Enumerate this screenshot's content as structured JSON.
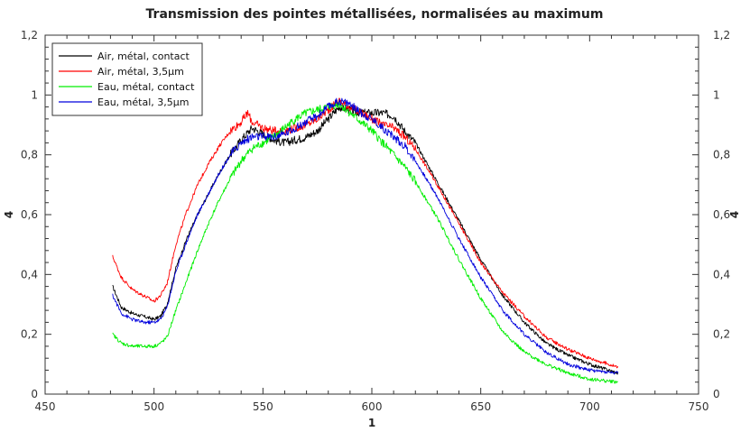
{
  "chart_data": {
    "type": "line",
    "title": "Transmission des pointes métallisées, normalisées au maximum",
    "xlabel": "1",
    "ylabel": "4",
    "ylabel_right": "4",
    "xlim": [
      450,
      750
    ],
    "ylim": [
      0,
      1.2
    ],
    "x_ticks": [
      450,
      500,
      550,
      600,
      650,
      700,
      750
    ],
    "x_tick_labels": [
      "450",
      "500",
      "550",
      "600",
      "650",
      "700",
      "750"
    ],
    "y_ticks": [
      0,
      0.2,
      0.4,
      0.6,
      0.8,
      1,
      1.2
    ],
    "y_tick_labels": [
      "0",
      "0,2",
      "0,4",
      "0,6",
      "0,8",
      "1",
      "1,2"
    ],
    "grid": false,
    "legend_position": "top-left",
    "series": [
      {
        "name": "Air, métal, contact",
        "color": "#000000",
        "x": [
          481,
          485,
          490,
          495,
          500,
          503,
          506,
          510,
          515,
          520,
          525,
          530,
          535,
          540,
          545,
          550,
          555,
          560,
          565,
          570,
          575,
          580,
          585,
          590,
          595,
          600,
          605,
          610,
          615,
          620,
          630,
          640,
          650,
          660,
          670,
          680,
          690,
          700,
          713
        ],
        "y": [
          0.36,
          0.29,
          0.27,
          0.26,
          0.25,
          0.26,
          0.3,
          0.42,
          0.52,
          0.6,
          0.67,
          0.74,
          0.8,
          0.85,
          0.89,
          0.87,
          0.85,
          0.84,
          0.85,
          0.86,
          0.88,
          0.92,
          0.96,
          0.95,
          0.94,
          0.94,
          0.94,
          0.93,
          0.88,
          0.84,
          0.71,
          0.58,
          0.45,
          0.33,
          0.24,
          0.17,
          0.13,
          0.1,
          0.07
        ]
      },
      {
        "name": "Air, métal, 3,5µm",
        "color": "#ff0000",
        "x": [
          481,
          485,
          490,
          495,
          500,
          503,
          506,
          510,
          515,
          520,
          525,
          530,
          535,
          540,
          543,
          545,
          550,
          555,
          560,
          565,
          570,
          575,
          580,
          585,
          590,
          595,
          600,
          605,
          610,
          615,
          620,
          630,
          640,
          650,
          660,
          670,
          680,
          690,
          700,
          713
        ],
        "y": [
          0.46,
          0.39,
          0.35,
          0.33,
          0.31,
          0.33,
          0.37,
          0.5,
          0.61,
          0.7,
          0.77,
          0.83,
          0.88,
          0.91,
          0.94,
          0.91,
          0.89,
          0.88,
          0.88,
          0.89,
          0.9,
          0.92,
          0.95,
          0.98,
          0.96,
          0.94,
          0.92,
          0.9,
          0.89,
          0.86,
          0.82,
          0.7,
          0.57,
          0.44,
          0.34,
          0.26,
          0.19,
          0.15,
          0.12,
          0.09
        ]
      },
      {
        "name": "Eau, métal, contact",
        "color": "#00ee00",
        "x": [
          481,
          485,
          490,
          495,
          500,
          503,
          506,
          510,
          515,
          520,
          525,
          530,
          535,
          540,
          545,
          550,
          555,
          560,
          565,
          570,
          575,
          580,
          585,
          590,
          595,
          600,
          605,
          610,
          615,
          620,
          630,
          640,
          650,
          660,
          670,
          680,
          690,
          700,
          713
        ],
        "y": [
          0.2,
          0.17,
          0.16,
          0.16,
          0.16,
          0.17,
          0.19,
          0.28,
          0.38,
          0.48,
          0.57,
          0.65,
          0.72,
          0.78,
          0.82,
          0.84,
          0.86,
          0.89,
          0.92,
          0.94,
          0.95,
          0.96,
          0.97,
          0.94,
          0.91,
          0.88,
          0.84,
          0.8,
          0.76,
          0.71,
          0.59,
          0.45,
          0.32,
          0.21,
          0.14,
          0.1,
          0.07,
          0.05,
          0.04
        ]
      },
      {
        "name": "Eau, métal, 3,5µm",
        "color": "#0000dd",
        "x": [
          481,
          485,
          490,
          495,
          500,
          503,
          506,
          510,
          515,
          520,
          525,
          530,
          535,
          540,
          545,
          550,
          555,
          560,
          565,
          570,
          575,
          580,
          585,
          590,
          595,
          600,
          605,
          610,
          615,
          620,
          630,
          640,
          650,
          660,
          670,
          680,
          690,
          700,
          713
        ],
        "y": [
          0.33,
          0.27,
          0.25,
          0.24,
          0.24,
          0.25,
          0.29,
          0.41,
          0.51,
          0.6,
          0.67,
          0.74,
          0.8,
          0.84,
          0.86,
          0.86,
          0.86,
          0.87,
          0.89,
          0.91,
          0.93,
          0.96,
          0.98,
          0.97,
          0.94,
          0.92,
          0.89,
          0.86,
          0.83,
          0.78,
          0.66,
          0.52,
          0.39,
          0.28,
          0.2,
          0.14,
          0.1,
          0.08,
          0.07
        ]
      }
    ]
  }
}
